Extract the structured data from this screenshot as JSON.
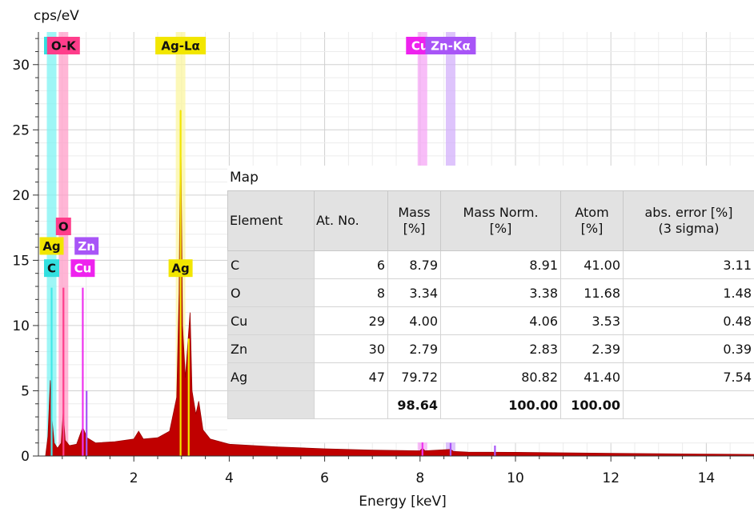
{
  "chart_data": {
    "type": "area",
    "ylabel": "cps/eV",
    "xlabel": "Energy [keV]",
    "xlim": [
      0,
      15
    ],
    "ylim": [
      0,
      32.5
    ],
    "x_ticks": [
      2,
      4,
      6,
      8,
      10,
      12,
      14
    ],
    "y_ticks": [
      0,
      5,
      10,
      15,
      20,
      25,
      30
    ],
    "grid": true,
    "spectrum_color": "#c00000",
    "line_color": "#f2e600",
    "spectrum": [
      [
        0.15,
        0
      ],
      [
        0.2,
        1.5
      ],
      [
        0.25,
        5.8
      ],
      [
        0.28,
        3.0
      ],
      [
        0.33,
        1.0
      ],
      [
        0.4,
        0.6
      ],
      [
        0.48,
        1.0
      ],
      [
        0.52,
        3.4
      ],
      [
        0.56,
        1.2
      ],
      [
        0.65,
        0.8
      ],
      [
        0.8,
        0.9
      ],
      [
        0.93,
        2.2
      ],
      [
        1.02,
        1.4
      ],
      [
        1.2,
        1.0
      ],
      [
        1.6,
        1.1
      ],
      [
        2.0,
        1.3
      ],
      [
        2.1,
        1.9
      ],
      [
        2.2,
        1.3
      ],
      [
        2.5,
        1.4
      ],
      [
        2.75,
        1.9
      ],
      [
        2.9,
        4.5
      ],
      [
        2.95,
        12.5
      ],
      [
        2.98,
        26.5
      ],
      [
        3.02,
        10.0
      ],
      [
        3.08,
        6.0
      ],
      [
        3.13,
        8.5
      ],
      [
        3.18,
        11.0
      ],
      [
        3.22,
        5.0
      ],
      [
        3.3,
        3.2
      ],
      [
        3.36,
        4.2
      ],
      [
        3.45,
        2.0
      ],
      [
        3.6,
        1.3
      ],
      [
        4.0,
        0.9
      ],
      [
        5.0,
        0.7
      ],
      [
        6.0,
        0.55
      ],
      [
        7.0,
        0.45
      ],
      [
        8.0,
        0.4
      ],
      [
        8.05,
        0.6
      ],
      [
        8.1,
        0.4
      ],
      [
        8.64,
        0.5
      ],
      [
        8.7,
        0.35
      ],
      [
        9.0,
        0.3
      ],
      [
        10.0,
        0.28
      ],
      [
        12.0,
        0.2
      ],
      [
        14.0,
        0.15
      ],
      [
        15.0,
        0.12
      ]
    ],
    "element_lines": [
      {
        "element": "C",
        "energy": 0.277,
        "height": 12.9,
        "color": "#44e8e8"
      },
      {
        "element": "O",
        "energy": 0.525,
        "height": 12.9,
        "color": "#ff3d8b"
      },
      {
        "element": "Cu",
        "energy": 0.93,
        "height": 12.9,
        "color": "#ee33ee"
      },
      {
        "element": "Zn",
        "energy": 1.01,
        "height": 5.0,
        "color": "#a855f7"
      },
      {
        "element": "Ag",
        "energy": 2.98,
        "height": 26.5,
        "color": "#f2e600"
      },
      {
        "element": "Ag",
        "energy": 3.15,
        "height": 9.0,
        "color": "#f2e600"
      },
      {
        "element": "Cu",
        "energy": 8.05,
        "height": 1.2,
        "color": "#ee33ee"
      },
      {
        "element": "Zn",
        "energy": 8.64,
        "height": 1.0,
        "color": "#a855f7"
      },
      {
        "element": "Zn",
        "energy": 9.57,
        "height": 0.8,
        "color": "#a855f7"
      }
    ],
    "bands": [
      {
        "label": "C-K",
        "energy": 0.277,
        "color": "#7df3f3"
      },
      {
        "label": "O-K",
        "energy": 0.525,
        "color": "#ff9ec8"
      },
      {
        "label": "Ag-Lα",
        "energy": 2.98,
        "color": "#fbf6a0"
      },
      {
        "label": "Cu-Kα",
        "energy": 8.05,
        "color": "#f6a7f6"
      },
      {
        "label": "Zn-Kα",
        "energy": 8.64,
        "color": "#d3b0fb"
      }
    ],
    "top_labels": [
      {
        "text": "C",
        "energy": 0.277,
        "bg": "#33e0e0"
      },
      {
        "text": "O-K",
        "energy": 0.525,
        "bg": "#ff3d8b"
      },
      {
        "text": "Ag-Lα",
        "energy": 2.98,
        "bg": "#f2e600"
      },
      {
        "text": "Cu-",
        "energy": 8.05,
        "bg": "#ee22ee"
      },
      {
        "text": "Zn-Kα",
        "energy": 8.64,
        "bg": "#a855f7"
      }
    ],
    "peak_labels": [
      {
        "text": "O",
        "energy": 0.525,
        "y": 17.6,
        "bg": "#ff3d8b"
      },
      {
        "text": "Ag",
        "energy": 0.277,
        "y": 16.1,
        "bg": "#f2e600"
      },
      {
        "text": "Zn",
        "energy": 1.01,
        "y": 16.1,
        "bg": "#a855f7"
      },
      {
        "text": "C",
        "energy": 0.277,
        "y": 14.4,
        "bg": "#33e0e0"
      },
      {
        "text": "Cu",
        "energy": 0.93,
        "y": 14.4,
        "bg": "#ee22ee"
      },
      {
        "text": "Ag",
        "energy": 2.98,
        "y": 14.4,
        "bg": "#f2e600"
      }
    ]
  },
  "results_table": {
    "title": "Map",
    "headers": {
      "element": "Element",
      "at_no": "At. No.",
      "mass_1": "Mass",
      "mass_2": "[%]",
      "mass_norm_1": "Mass Norm.",
      "mass_norm_2": "[%]",
      "atom_1": "Atom",
      "atom_2": "[%]",
      "abs_error_1": "abs. error [%]",
      "abs_error_2": "(3 sigma)"
    },
    "rows": [
      {
        "element": "C",
        "at_no": "6",
        "mass": "8.79",
        "mass_norm": "8.91",
        "atom": "41.00",
        "abs_error": "3.11"
      },
      {
        "element": "O",
        "at_no": "8",
        "mass": "3.34",
        "mass_norm": "3.38",
        "atom": "11.68",
        "abs_error": "1.48"
      },
      {
        "element": "Cu",
        "at_no": "29",
        "mass": "4.00",
        "mass_norm": "4.06",
        "atom": "3.53",
        "abs_error": "0.48"
      },
      {
        "element": "Zn",
        "at_no": "30",
        "mass": "2.79",
        "mass_norm": "2.83",
        "atom": "2.39",
        "abs_error": "0.39"
      },
      {
        "element": "Ag",
        "at_no": "47",
        "mass": "79.72",
        "mass_norm": "80.82",
        "atom": "41.40",
        "abs_error": "7.54"
      }
    ],
    "total": {
      "mass": "98.64",
      "mass_norm": "100.00",
      "atom": "100.00"
    }
  }
}
